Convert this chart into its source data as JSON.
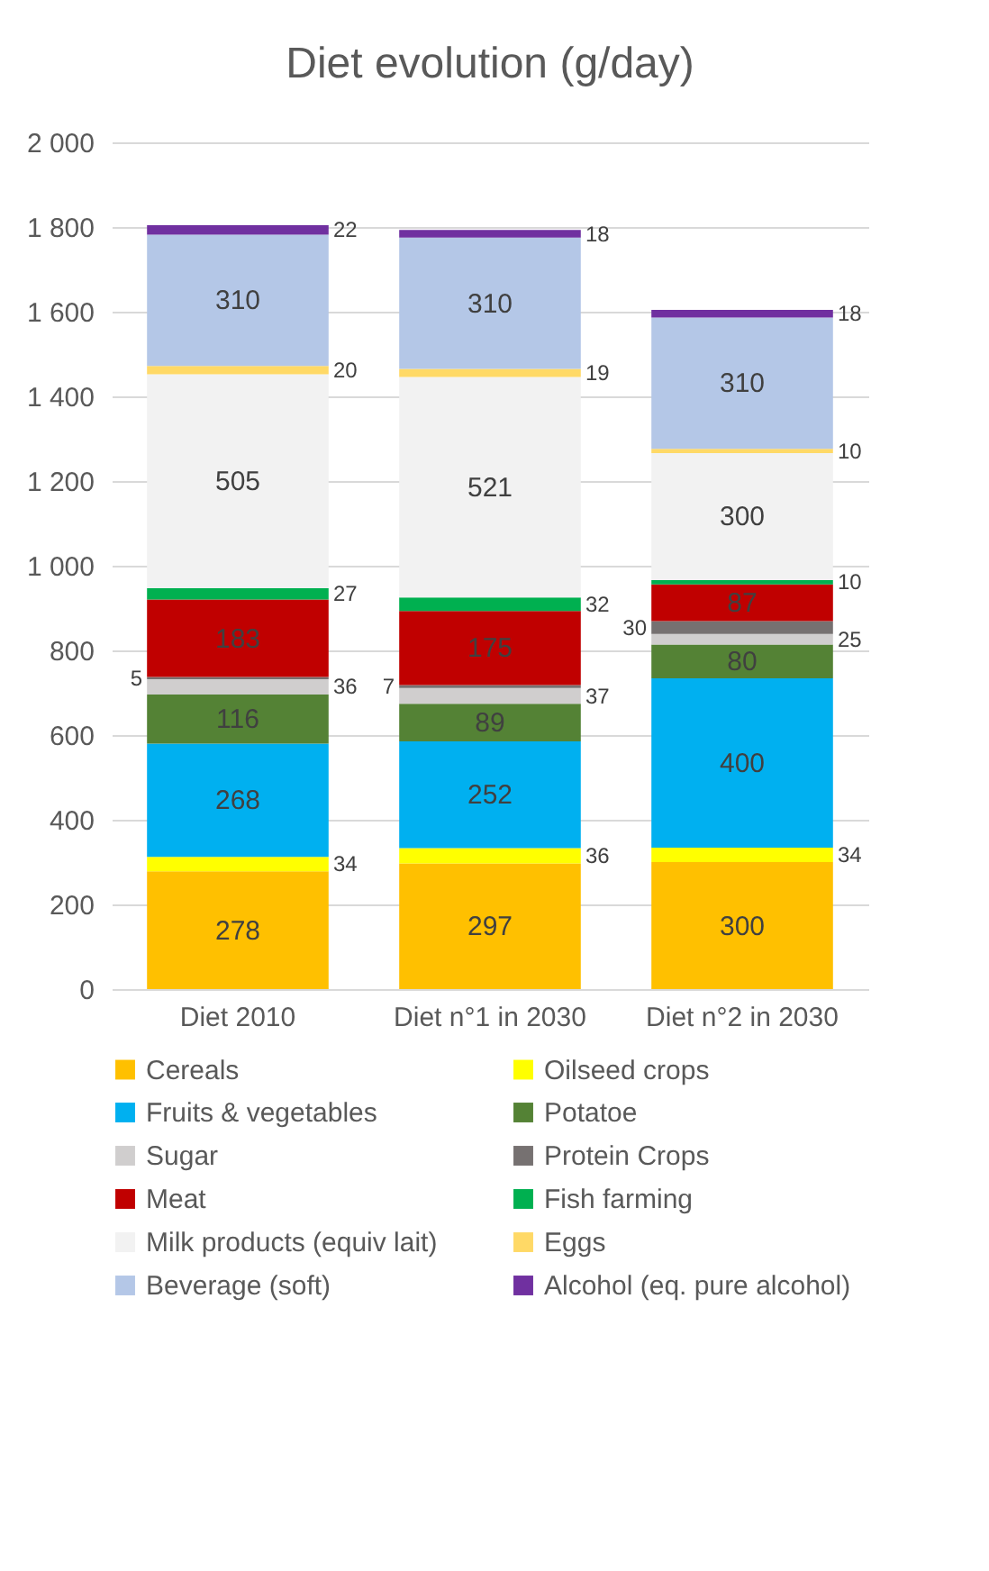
{
  "chart_data": {
    "type": "bar",
    "title": "Diet evolution (g/day)",
    "stacked": true,
    "data_labels": true,
    "grid": "y",
    "legend": "bottom",
    "categories": [
      "Diet 2010",
      "Diet n°1 in 2030",
      "Diet n°2 in 2030"
    ],
    "ylim": [
      0,
      2000
    ],
    "yticks": [
      0,
      200,
      400,
      600,
      800,
      {
        "value": 1000,
        "label": "1 000"
      },
      {
        "value": 1200,
        "label": "1 200"
      },
      {
        "value": 1400,
        "label": "1 400"
      },
      {
        "value": 1600,
        "label": "1 600"
      },
      {
        "value": 1800,
        "label": "1 800"
      },
      {
        "value": 2000,
        "label": "2 000"
      }
    ],
    "series": [
      {
        "name": "Cereals",
        "color": "#ffc000",
        "values": [
          278,
          297,
          300
        ]
      },
      {
        "name": "Oilseed crops",
        "color": "#ffff00",
        "values": [
          34,
          36,
          34
        ]
      },
      {
        "name": "Fruits & vegetables",
        "color": "#00b0f0",
        "values": [
          268,
          252,
          400
        ]
      },
      {
        "name": "Potatoe",
        "color": "#548235",
        "values": [
          116,
          89,
          80
        ]
      },
      {
        "name": "Sugar",
        "color": "#d0cece",
        "values": [
          36,
          37,
          25
        ]
      },
      {
        "name": "Protein Crops",
        "color": "#767171",
        "values": [
          5,
          7,
          30
        ]
      },
      {
        "name": "Meat",
        "color": "#c00000",
        "values": [
          183,
          175,
          87
        ]
      },
      {
        "name": "Fish farming",
        "color": "#00b050",
        "values": [
          27,
          32,
          10
        ]
      },
      {
        "name": "Milk products (equiv lait)",
        "color": "#f2f2f2",
        "values": [
          505,
          521,
          300
        ]
      },
      {
        "name": "Eggs",
        "color": "#ffd966",
        "values": [
          20,
          19,
          10
        ]
      },
      {
        "name": "Beverage (soft)",
        "color": "#b4c7e7",
        "values": [
          310,
          310,
          310
        ]
      },
      {
        "name": "Alcohol (eq. pure alcohol)",
        "color": "#7030a0",
        "values": [
          22,
          18,
          18
        ]
      }
    ]
  }
}
